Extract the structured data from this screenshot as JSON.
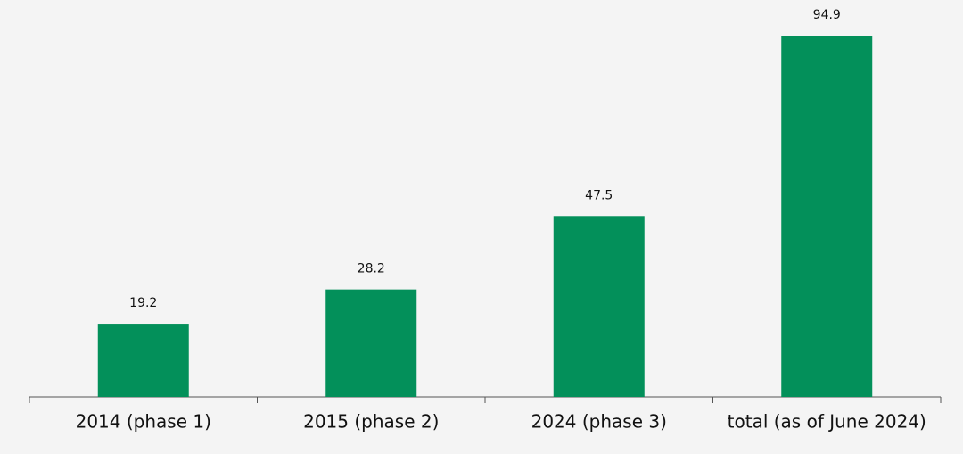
{
  "chart_data": {
    "type": "bar",
    "categories": [
      "2014 (phase 1)",
      "2015 (phase 2)",
      "2024 (phase 3)",
      "total (as of June 2024)"
    ],
    "values": [
      19.2,
      28.2,
      47.5,
      94.9
    ],
    "color": "#03905a"
  }
}
